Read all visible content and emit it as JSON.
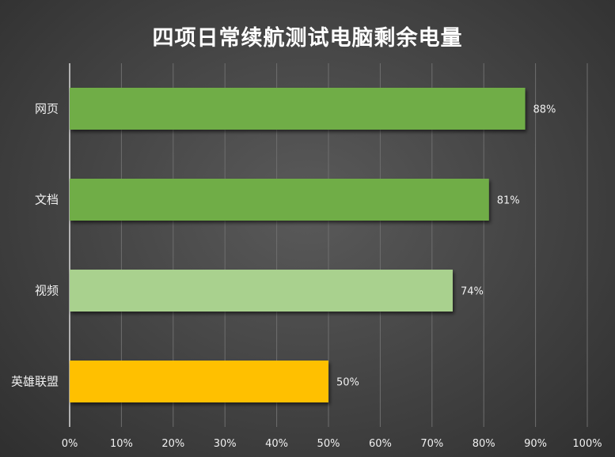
{
  "chart_data": {
    "type": "bar",
    "orientation": "horizontal",
    "title": "四项日常续航测试电脑剩余电量",
    "categories": [
      "网页",
      "文档",
      "视频",
      "英雄联盟"
    ],
    "values": [
      88,
      81,
      74,
      50
    ],
    "value_labels": [
      "88%",
      "81%",
      "74%",
      "50%"
    ],
    "bar_colors": [
      "#70ad47",
      "#70ad47",
      "#a9d18e",
      "#ffc000"
    ],
    "xlim": [
      0,
      100
    ],
    "x_ticks": [
      "0%",
      "10%",
      "20%",
      "30%",
      "40%",
      "50%",
      "60%",
      "70%",
      "80%",
      "90%",
      "100%"
    ],
    "grid": true,
    "legend": "none"
  }
}
